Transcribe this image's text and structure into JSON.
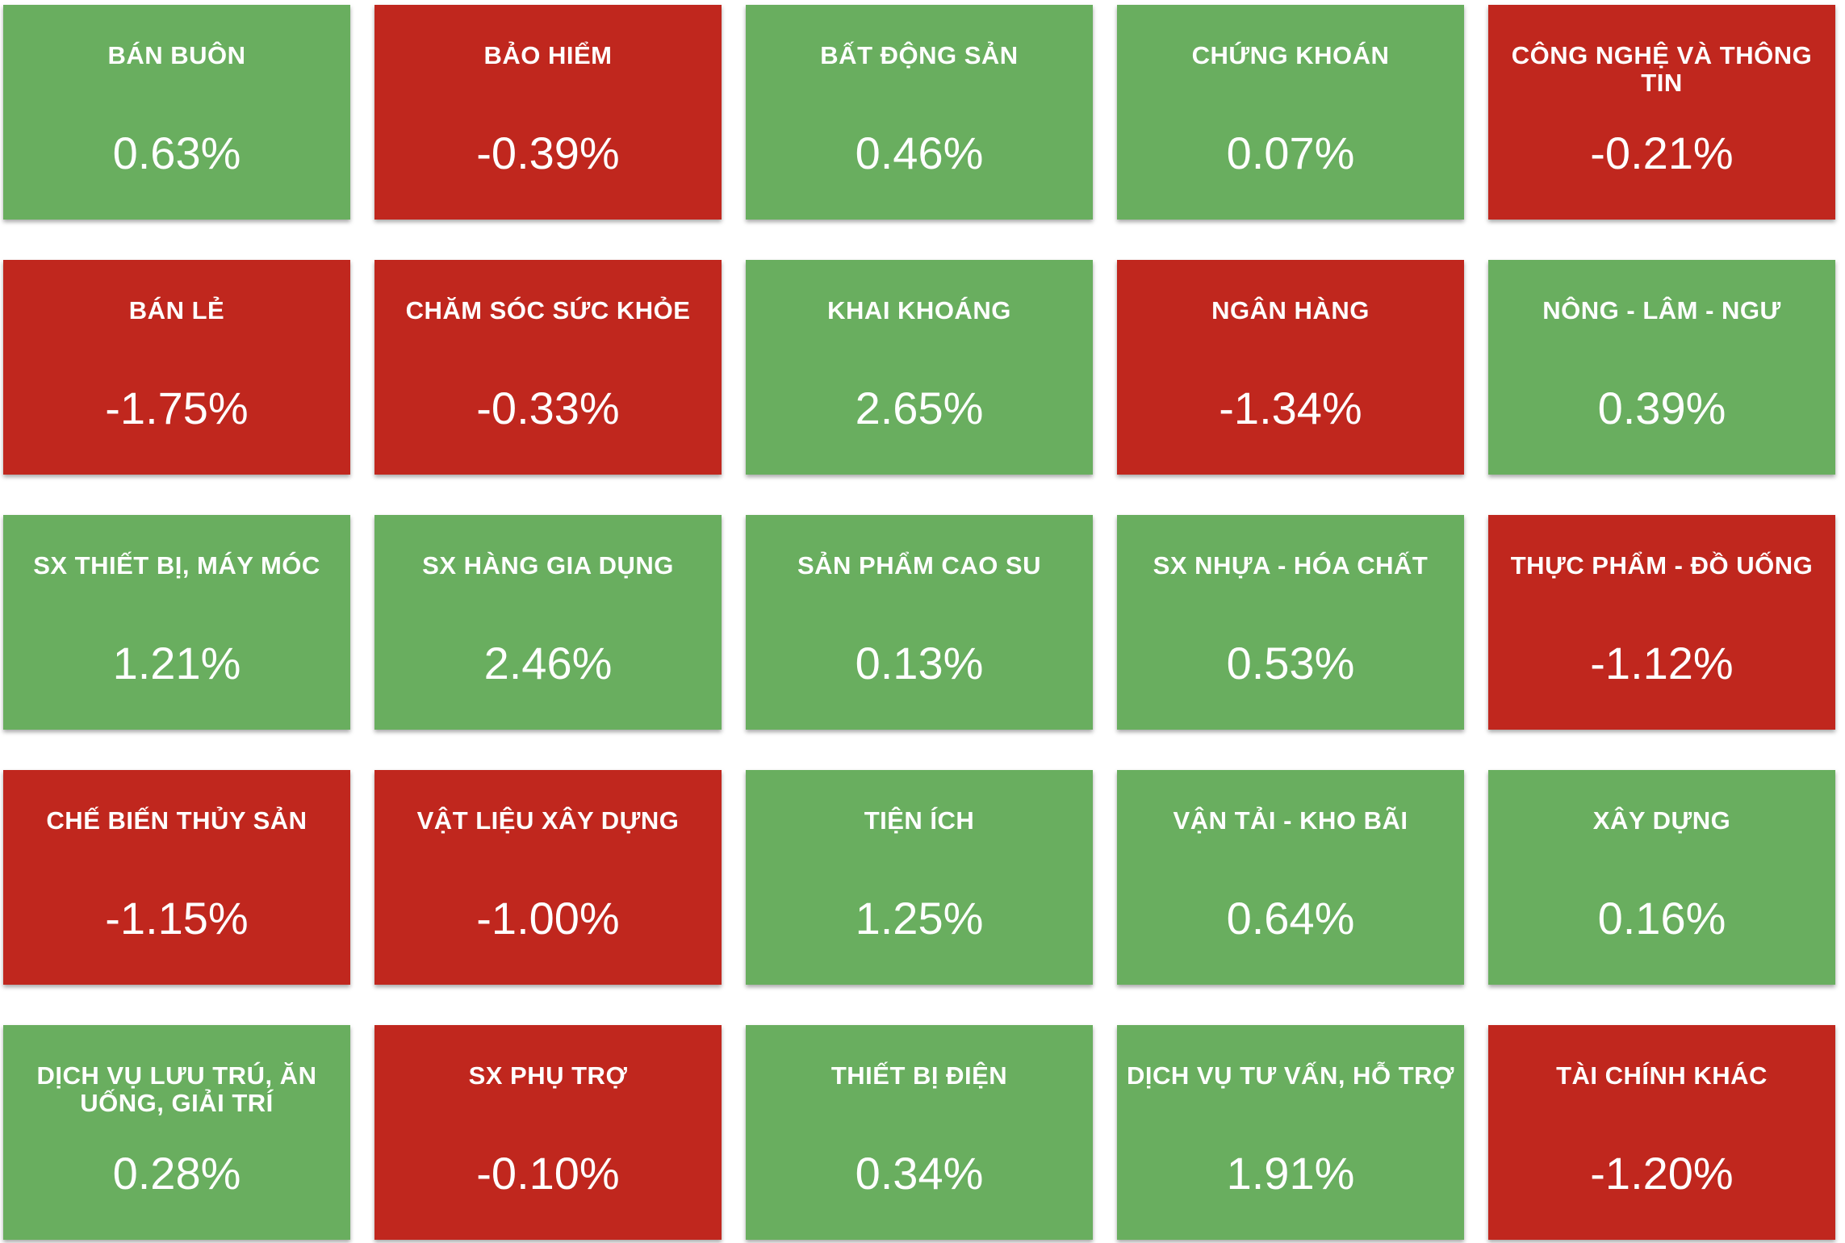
{
  "colors": {
    "up": "#69ae5f",
    "down": "#c0271e",
    "text": "#ffffff"
  },
  "sectors": [
    {
      "name": "BÁN BUÔN",
      "change": "0.63%",
      "direction": "up"
    },
    {
      "name": "BẢO HIỂM",
      "change": "-0.39%",
      "direction": "down"
    },
    {
      "name": "BẤT ĐỘNG SẢN",
      "change": "0.46%",
      "direction": "up"
    },
    {
      "name": "CHỨNG KHOÁN",
      "change": "0.07%",
      "direction": "up"
    },
    {
      "name": "CÔNG NGHỆ VÀ THÔNG TIN",
      "change": "-0.21%",
      "direction": "down"
    },
    {
      "name": "BÁN LẺ",
      "change": "-1.75%",
      "direction": "down"
    },
    {
      "name": "CHĂM SÓC SỨC KHỎE",
      "change": "-0.33%",
      "direction": "down"
    },
    {
      "name": "KHAI KHOÁNG",
      "change": "2.65%",
      "direction": "up"
    },
    {
      "name": "NGÂN HÀNG",
      "change": "-1.34%",
      "direction": "down"
    },
    {
      "name": "NÔNG - LÂM - NGƯ",
      "change": "0.39%",
      "direction": "up"
    },
    {
      "name": "SX THIẾT BỊ, MÁY MÓC",
      "change": "1.21%",
      "direction": "up"
    },
    {
      "name": "SX HÀNG GIA DỤNG",
      "change": "2.46%",
      "direction": "up"
    },
    {
      "name": "SẢN PHẨM CAO SU",
      "change": "0.13%",
      "direction": "up"
    },
    {
      "name": "SX NHỰA - HÓA CHẤT",
      "change": "0.53%",
      "direction": "up"
    },
    {
      "name": "THỰC PHẨM - ĐỒ UỐNG",
      "change": "-1.12%",
      "direction": "down"
    },
    {
      "name": "CHẾ BIẾN THỦY SẢN",
      "change": "-1.15%",
      "direction": "down"
    },
    {
      "name": "VẬT LIỆU XÂY DỰNG",
      "change": "-1.00%",
      "direction": "down"
    },
    {
      "name": "TIỆN ÍCH",
      "change": "1.25%",
      "direction": "up"
    },
    {
      "name": "VẬN TẢI - KHO BÃI",
      "change": "0.64%",
      "direction": "up"
    },
    {
      "name": "XÂY DỰNG",
      "change": "0.16%",
      "direction": "up"
    },
    {
      "name": "DỊCH VỤ LƯU TRÚ, ĂN UỐNG, GIẢI TRÍ",
      "change": "0.28%",
      "direction": "up"
    },
    {
      "name": "SX PHỤ TRỢ",
      "change": "-0.10%",
      "direction": "down"
    },
    {
      "name": "THIẾT BỊ ĐIỆN",
      "change": "0.34%",
      "direction": "up"
    },
    {
      "name": "DỊCH VỤ TƯ VẤN, HỖ TRỢ",
      "change": "1.91%",
      "direction": "up"
    },
    {
      "name": "TÀI CHÍNH KHÁC",
      "change": "-1.20%",
      "direction": "down"
    }
  ]
}
